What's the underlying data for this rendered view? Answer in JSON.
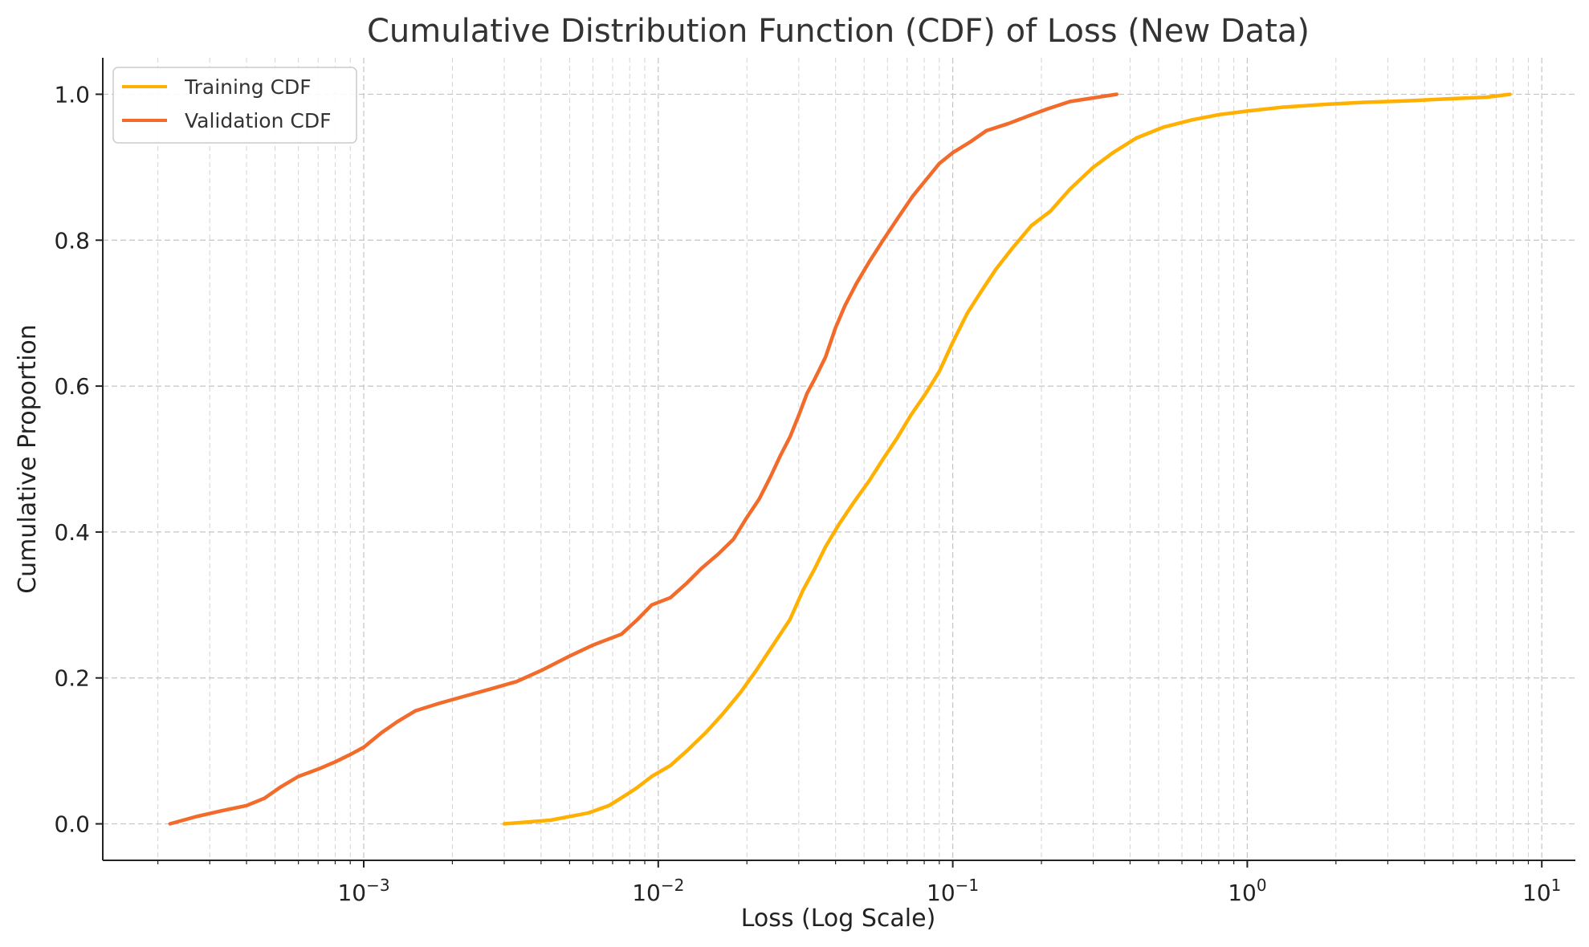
{
  "chart_data": {
    "type": "line",
    "title": "Cumulative Distribution Function (CDF) of Loss (New Data)",
    "xlabel": "Loss (Log Scale)",
    "ylabel": "Cumulative Proportion",
    "xscale": "log",
    "xlim": [
      0.00013,
      13
    ],
    "ylim": [
      -0.05,
      1.05
    ],
    "x_ticks": [
      {
        "value": 0.001,
        "base": "10",
        "exp": "−3"
      },
      {
        "value": 0.01,
        "base": "10",
        "exp": "−2"
      },
      {
        "value": 0.1,
        "base": "10",
        "exp": "−1"
      },
      {
        "value": 1,
        "base": "10",
        "exp": "0"
      },
      {
        "value": 10,
        "base": "10",
        "exp": "1"
      }
    ],
    "y_ticks": [
      {
        "value": 0.0,
        "label": "0.0"
      },
      {
        "value": 0.2,
        "label": "0.2"
      },
      {
        "value": 0.4,
        "label": "0.4"
      },
      {
        "value": 0.6,
        "label": "0.6"
      },
      {
        "value": 0.8,
        "label": "0.8"
      },
      {
        "value": 1.0,
        "label": "1.0"
      }
    ],
    "grid": true,
    "minor_grid": true,
    "legend_position": "top-left",
    "series": [
      {
        "name": "Training CDF",
        "color": "#FFB000",
        "points": [
          [
            0.003,
            0.0
          ],
          [
            0.0043,
            0.005
          ],
          [
            0.0058,
            0.015
          ],
          [
            0.0068,
            0.025
          ],
          [
            0.0078,
            0.04
          ],
          [
            0.0085,
            0.05
          ],
          [
            0.0095,
            0.065
          ],
          [
            0.011,
            0.08
          ],
          [
            0.0125,
            0.1
          ],
          [
            0.0145,
            0.125
          ],
          [
            0.0165,
            0.15
          ],
          [
            0.019,
            0.18
          ],
          [
            0.0215,
            0.21
          ],
          [
            0.025,
            0.25
          ],
          [
            0.028,
            0.28
          ],
          [
            0.031,
            0.32
          ],
          [
            0.034,
            0.35
          ],
          [
            0.037,
            0.38
          ],
          [
            0.041,
            0.41
          ],
          [
            0.046,
            0.44
          ],
          [
            0.052,
            0.47
          ],
          [
            0.058,
            0.5
          ],
          [
            0.065,
            0.53
          ],
          [
            0.072,
            0.56
          ],
          [
            0.081,
            0.59
          ],
          [
            0.09,
            0.62
          ],
          [
            0.1,
            0.66
          ],
          [
            0.112,
            0.7
          ],
          [
            0.125,
            0.73
          ],
          [
            0.14,
            0.76
          ],
          [
            0.16,
            0.79
          ],
          [
            0.185,
            0.82
          ],
          [
            0.215,
            0.84
          ],
          [
            0.25,
            0.87
          ],
          [
            0.3,
            0.9
          ],
          [
            0.35,
            0.92
          ],
          [
            0.42,
            0.94
          ],
          [
            0.52,
            0.955
          ],
          [
            0.65,
            0.965
          ],
          [
            0.8,
            0.972
          ],
          [
            1.0,
            0.977
          ],
          [
            1.3,
            0.982
          ],
          [
            1.8,
            0.986
          ],
          [
            2.5,
            0.989
          ],
          [
            3.5,
            0.991
          ],
          [
            5.0,
            0.994
          ],
          [
            6.5,
            0.996
          ],
          [
            7.8,
            1.0
          ]
        ]
      },
      {
        "name": "Validation CDF",
        "color": "#F26B2B",
        "points": [
          [
            0.00022,
            0.0
          ],
          [
            0.00027,
            0.01
          ],
          [
            0.00033,
            0.018
          ],
          [
            0.0004,
            0.025
          ],
          [
            0.00046,
            0.035
          ],
          [
            0.00052,
            0.05
          ],
          [
            0.0006,
            0.065
          ],
          [
            0.0007,
            0.075
          ],
          [
            0.0008,
            0.085
          ],
          [
            0.0009,
            0.095
          ],
          [
            0.001,
            0.105
          ],
          [
            0.00115,
            0.125
          ],
          [
            0.0013,
            0.14
          ],
          [
            0.0015,
            0.155
          ],
          [
            0.0018,
            0.165
          ],
          [
            0.0022,
            0.175
          ],
          [
            0.0027,
            0.185
          ],
          [
            0.0033,
            0.195
          ],
          [
            0.004,
            0.21
          ],
          [
            0.005,
            0.23
          ],
          [
            0.006,
            0.245
          ],
          [
            0.0075,
            0.26
          ],
          [
            0.0085,
            0.28
          ],
          [
            0.0095,
            0.3
          ],
          [
            0.011,
            0.31
          ],
          [
            0.0125,
            0.33
          ],
          [
            0.014,
            0.35
          ],
          [
            0.016,
            0.37
          ],
          [
            0.018,
            0.39
          ],
          [
            0.02,
            0.42
          ],
          [
            0.022,
            0.445
          ],
          [
            0.024,
            0.475
          ],
          [
            0.026,
            0.505
          ],
          [
            0.028,
            0.53
          ],
          [
            0.03,
            0.56
          ],
          [
            0.032,
            0.59
          ],
          [
            0.034,
            0.61
          ],
          [
            0.037,
            0.64
          ],
          [
            0.04,
            0.68
          ],
          [
            0.043,
            0.71
          ],
          [
            0.047,
            0.74
          ],
          [
            0.052,
            0.77
          ],
          [
            0.058,
            0.8
          ],
          [
            0.065,
            0.83
          ],
          [
            0.073,
            0.86
          ],
          [
            0.082,
            0.885
          ],
          [
            0.09,
            0.905
          ],
          [
            0.1,
            0.92
          ],
          [
            0.115,
            0.935
          ],
          [
            0.13,
            0.95
          ],
          [
            0.155,
            0.96
          ],
          [
            0.18,
            0.97
          ],
          [
            0.21,
            0.98
          ],
          [
            0.25,
            0.99
          ],
          [
            0.3,
            0.995
          ],
          [
            0.36,
            1.0
          ]
        ]
      }
    ]
  }
}
